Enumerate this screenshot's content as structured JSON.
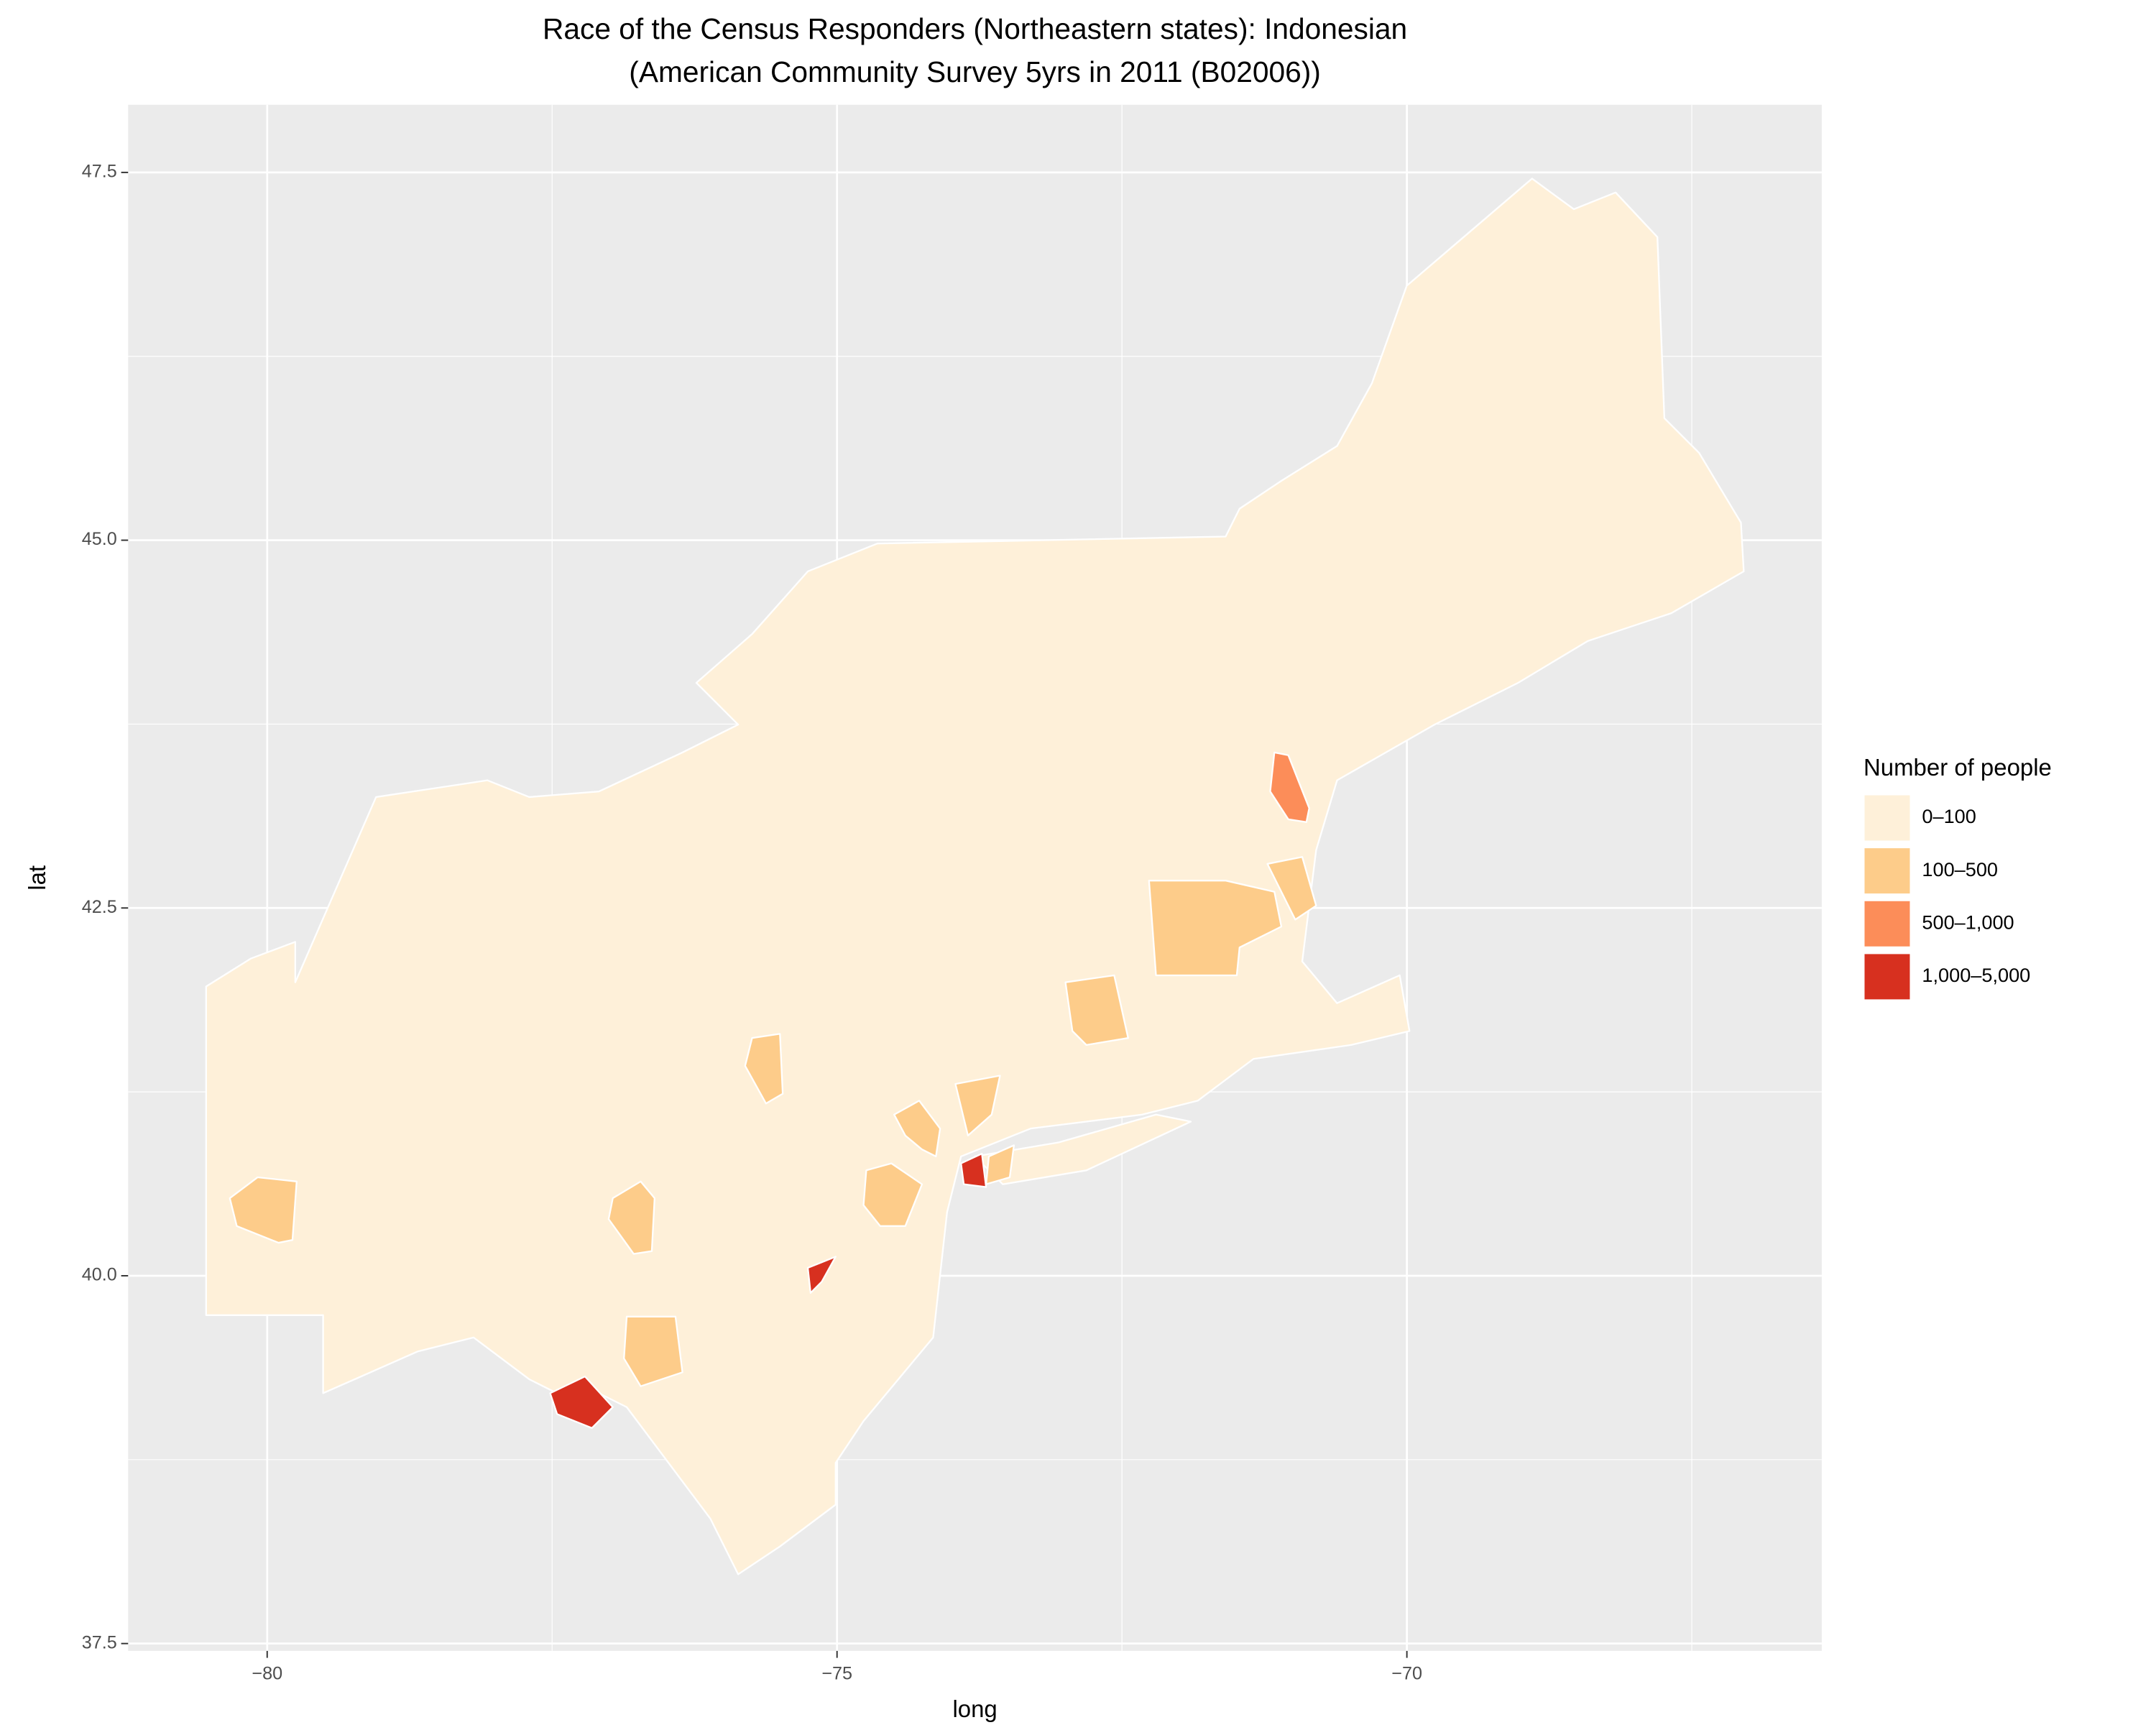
{
  "chart_data": {
    "type": "map",
    "title": "Race of the Census Responders (Northeastern states): Indonesian",
    "subtitle": "(American Community Survey 5yrs in 2011 (B02006))",
    "x_label": "long",
    "y_label": "lat",
    "xlim": [
      -81.22,
      -66.36
    ],
    "ylim": [
      37.45,
      47.96
    ],
    "xticks": [
      {
        "value": -80,
        "label": "−80"
      },
      {
        "value": -75,
        "label": "−75"
      },
      {
        "value": -70,
        "label": "−70"
      }
    ],
    "yticks": [
      37.5,
      {
        "value": 40,
        "label": "40.0"
      },
      42.5,
      {
        "value": 45,
        "label": "45.0"
      },
      47.5
    ],
    "grid": true,
    "legend": {
      "title": "Number of people",
      "position": "right",
      "entries": [
        {
          "label": "0–100",
          "color": "#fef0d9"
        },
        {
          "label": "100–500",
          "color": "#fdcc8a"
        },
        {
          "label": "500–1,000",
          "color": "#fc8d59"
        },
        {
          "label": "1,000–5,000",
          "color": "#d7301f"
        }
      ]
    }
  }
}
